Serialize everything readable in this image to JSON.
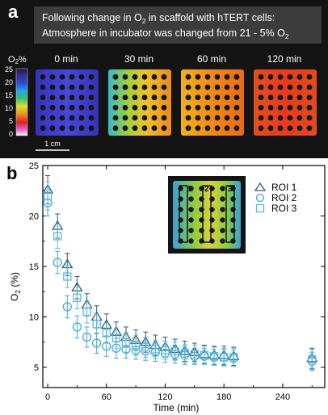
{
  "panel_a": {
    "label": "a",
    "caption_line1": "Following change in O",
    "caption_sub1": "2",
    "caption_line1_end": " in scaffold with hTERT cells:",
    "caption_line2": "Atmosphere in incubator was changed from 21 - 5% O",
    "caption_sub2": "2",
    "colorbar_title": "O",
    "colorbar_title_sub": "2",
    "colorbar_title_end": "%",
    "colorbar_ticks": [
      "25",
      "20",
      "15",
      "10",
      "5",
      "0"
    ],
    "scale_bar_label": "1 cm",
    "time_labels": [
      "0 min",
      "30 min",
      "60 min",
      "120 min"
    ],
    "colors": {
      "background": "#141414",
      "scaffold_0": "#3b3bd6",
      "scaffold_30": "#e5c632",
      "scaffold_60": "#f08a18",
      "scaffold_120": "#e0401e"
    }
  },
  "panel_b": {
    "label": "b",
    "inset_roi_labels": [
      "1",
      "2",
      "3"
    ]
  },
  "chart_data": {
    "type": "scatter",
    "xlabel": "Time (min)",
    "ylabel": "O",
    "ylabel_sub": "2",
    "ylabel_end": " (%)",
    "xlim": [
      -5,
      283
    ],
    "ylim": [
      3,
      25
    ],
    "xticks": [
      0,
      60,
      120,
      180,
      240
    ],
    "yticks": [
      5,
      10,
      15,
      20,
      25
    ],
    "legend_position": "top-right",
    "series": [
      {
        "name": "ROI 1",
        "marker": "triangle",
        "color": "#2f5f6e",
        "x": [
          0,
          10,
          20,
          30,
          40,
          50,
          60,
          70,
          80,
          90,
          100,
          110,
          120,
          130,
          140,
          150,
          160,
          170,
          180,
          190,
          270
        ],
        "y": [
          22.6,
          19.0,
          15.2,
          12.9,
          11.2,
          10.0,
          9.2,
          8.5,
          8.0,
          7.7,
          7.5,
          7.2,
          7.0,
          6.8,
          6.6,
          6.5,
          6.3,
          6.2,
          6.2,
          6.1,
          5.9
        ],
        "err": [
          1.4,
          1.2,
          1.1,
          1.1,
          1.1,
          1.1,
          1.1,
          1.0,
          1.0,
          1.0,
          1.0,
          1.0,
          1.0,
          1.0,
          1.0,
          0.9,
          0.9,
          0.9,
          0.9,
          0.9,
          1.0
        ]
      },
      {
        "name": "ROI 2",
        "marker": "circle",
        "color": "#3fa9d6",
        "x": [
          0,
          10,
          20,
          30,
          40,
          50,
          60,
          70,
          80,
          90,
          100,
          110,
          120,
          130,
          140,
          150,
          160,
          170,
          180,
          190,
          270
        ],
        "y": [
          21.3,
          15.4,
          11.0,
          9.0,
          8.0,
          7.4,
          7.1,
          6.9,
          6.8,
          6.7,
          6.6,
          6.5,
          6.4,
          6.3,
          6.2,
          6.1,
          6.1,
          6.0,
          6.0,
          5.9,
          5.6
        ],
        "err": [
          1.3,
          1.1,
          1.1,
          1.1,
          1.0,
          1.0,
          1.0,
          1.0,
          0.9,
          0.9,
          0.9,
          0.9,
          0.9,
          0.9,
          0.9,
          0.8,
          0.8,
          0.8,
          0.8,
          0.8,
          0.9
        ]
      },
      {
        "name": "ROI 3",
        "marker": "square",
        "color": "#5bb8e0",
        "x": [
          0,
          10,
          20,
          30,
          40,
          50,
          60,
          70,
          80,
          90,
          100,
          110,
          120,
          130,
          140,
          150,
          160,
          170,
          180,
          190,
          270
        ],
        "y": [
          22.0,
          18.0,
          14.0,
          11.9,
          10.5,
          9.3,
          8.4,
          7.9,
          7.5,
          7.2,
          7.0,
          6.8,
          6.7,
          6.6,
          6.4,
          6.3,
          6.2,
          6.1,
          6.0,
          6.0,
          5.8
        ],
        "err": [
          1.4,
          1.2,
          1.1,
          1.1,
          1.1,
          1.0,
          1.0,
          1.0,
          1.0,
          1.0,
          1.0,
          0.9,
          0.9,
          0.9,
          0.9,
          0.9,
          0.9,
          0.9,
          0.9,
          0.9,
          1.0
        ]
      }
    ]
  }
}
